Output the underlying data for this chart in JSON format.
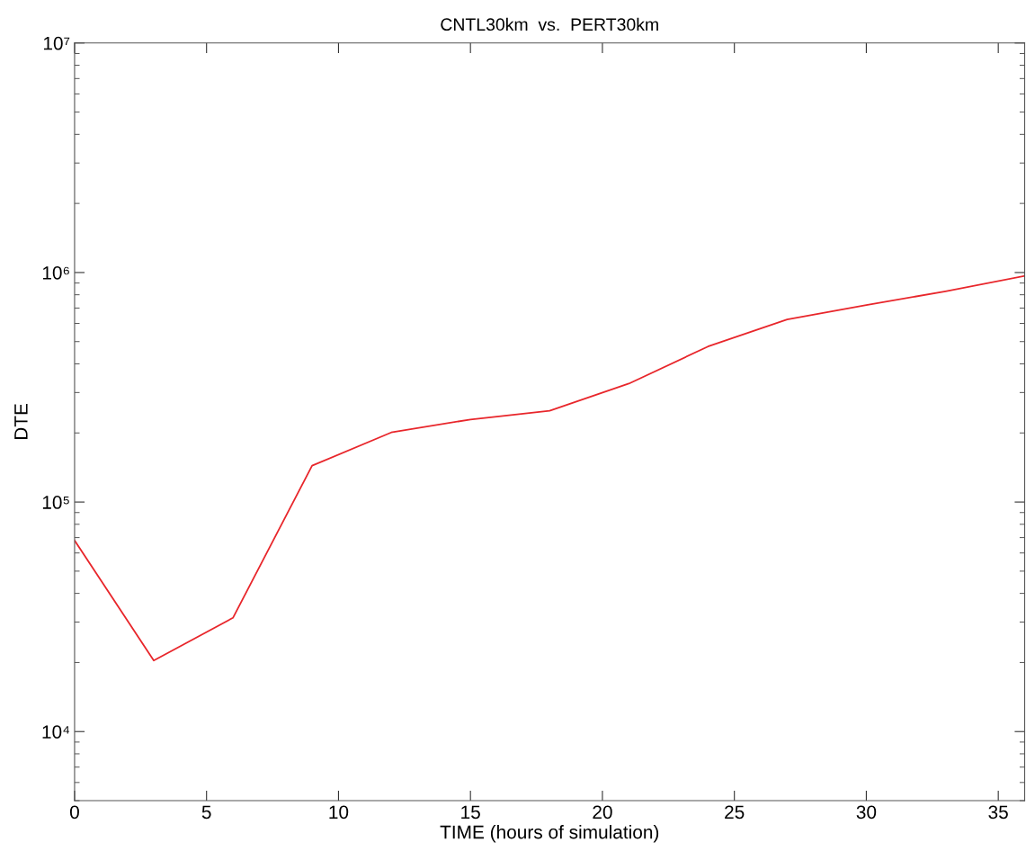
{
  "chart_data": {
    "type": "line",
    "title": "CNTL30km  vs.  PERT30km",
    "xlabel": "TIME (hours of simulation)",
    "ylabel": "DTE",
    "log": "y",
    "grid": false,
    "marker": "none",
    "line_style": "solid",
    "x": [
      0,
      3,
      6,
      9,
      12,
      15,
      18,
      21,
      24,
      27,
      30,
      33,
      36
    ],
    "series": [
      {
        "color": "#e8262b",
        "values": [
          68000,
          20400,
          31300,
          144000,
          201000,
          229000,
          250000,
          328000,
          476000,
          625000,
          722000,
          828000,
          966000
        ]
      }
    ],
    "xlim": [
      0,
      36
    ],
    "xticks": [
      0,
      5,
      10,
      15,
      20,
      25,
      30,
      35
    ],
    "ylim": [
      5000,
      10000000
    ],
    "yticks": [
      {
        "value": 10000,
        "label": "10⁴"
      },
      {
        "value": 100000,
        "label": "10⁵"
      },
      {
        "value": 1000000,
        "label": "10⁶"
      },
      {
        "value": 10000000,
        "label": "10⁷"
      }
    ]
  }
}
